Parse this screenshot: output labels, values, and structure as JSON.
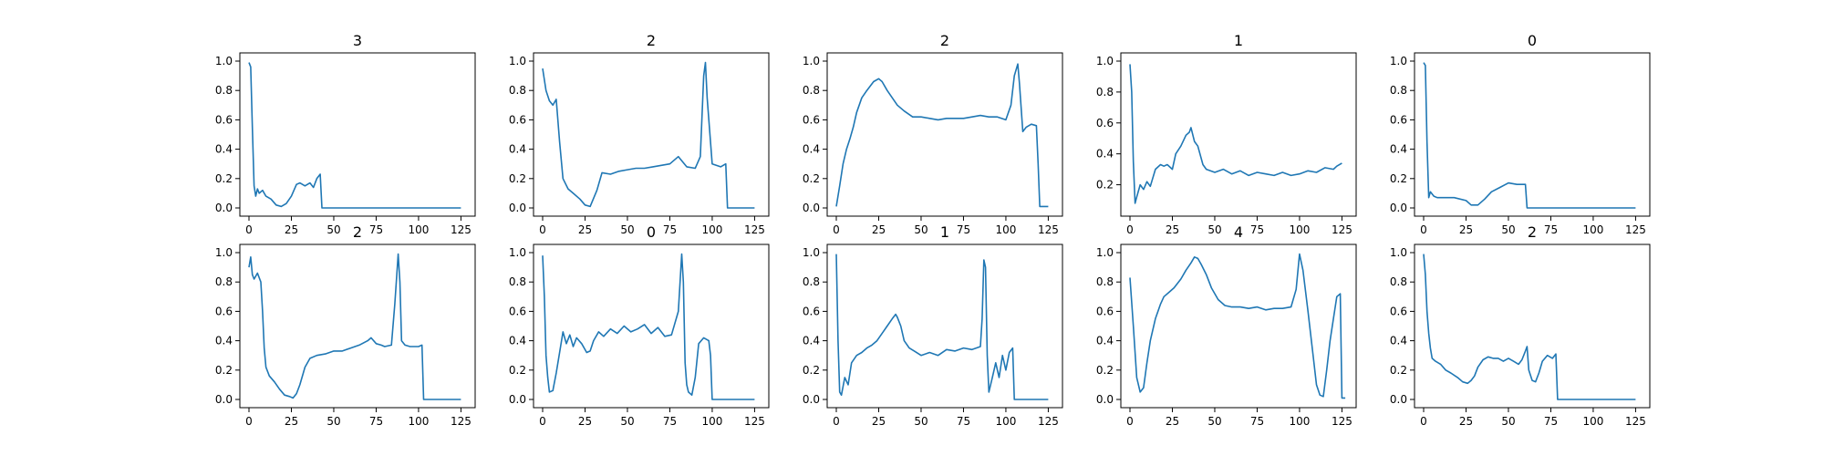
{
  "colors": {
    "series": "#1f77b4",
    "axes": "#000000",
    "background": "#ffffff"
  },
  "chart_data": [
    {
      "type": "line",
      "title": "3",
      "xlim": [
        0,
        128
      ],
      "ylim": [
        0,
        1.0
      ],
      "xticks": [
        0,
        25,
        50,
        75,
        100,
        125
      ],
      "yticks": [
        0.0,
        0.2,
        0.4,
        0.6,
        0.8,
        1.0
      ],
      "x": [
        0,
        1,
        2,
        3,
        4,
        5,
        6,
        8,
        10,
        13,
        16,
        19,
        22,
        25,
        28,
        30,
        33,
        36,
        38,
        40,
        42,
        43,
        50,
        75,
        100,
        125
      ],
      "values": [
        0.99,
        0.96,
        0.55,
        0.15,
        0.08,
        0.13,
        0.1,
        0.12,
        0.08,
        0.06,
        0.02,
        0.01,
        0.03,
        0.08,
        0.16,
        0.17,
        0.15,
        0.17,
        0.14,
        0.2,
        0.23,
        0.0,
        0.0,
        0.0,
        0.0,
        0.0
      ]
    },
    {
      "type": "line",
      "title": "2",
      "xlim": [
        0,
        128
      ],
      "ylim": [
        0,
        1.0
      ],
      "xticks": [
        0,
        25,
        50,
        75,
        100,
        125
      ],
      "yticks": [
        0.0,
        0.2,
        0.4,
        0.6,
        0.8,
        1.0
      ],
      "x": [
        0,
        2,
        4,
        6,
        8,
        10,
        12,
        15,
        18,
        22,
        25,
        28,
        32,
        35,
        40,
        45,
        50,
        55,
        60,
        65,
        70,
        75,
        80,
        85,
        90,
        93,
        95,
        96,
        97,
        100,
        105,
        108,
        109,
        125
      ],
      "values": [
        0.95,
        0.8,
        0.73,
        0.7,
        0.74,
        0.45,
        0.2,
        0.13,
        0.1,
        0.06,
        0.02,
        0.01,
        0.12,
        0.24,
        0.23,
        0.25,
        0.26,
        0.27,
        0.27,
        0.28,
        0.29,
        0.3,
        0.35,
        0.28,
        0.27,
        0.35,
        0.9,
        0.99,
        0.75,
        0.3,
        0.28,
        0.3,
        0.0,
        0.0
      ]
    },
    {
      "type": "line",
      "title": "2",
      "xlim": [
        0,
        128
      ],
      "ylim": [
        0,
        1.0
      ],
      "xticks": [
        0,
        25,
        50,
        75,
        100,
        125
      ],
      "yticks": [
        0.0,
        0.2,
        0.4,
        0.6,
        0.8,
        1.0
      ],
      "x": [
        0,
        2,
        4,
        6,
        8,
        10,
        12,
        15,
        18,
        20,
        22,
        25,
        27,
        30,
        33,
        36,
        40,
        45,
        50,
        55,
        60,
        65,
        70,
        75,
        80,
        85,
        90,
        95,
        100,
        103,
        105,
        107,
        108,
        110,
        112,
        115,
        118,
        119,
        120,
        125
      ],
      "values": [
        0.01,
        0.15,
        0.3,
        0.4,
        0.47,
        0.55,
        0.65,
        0.75,
        0.8,
        0.83,
        0.86,
        0.88,
        0.86,
        0.8,
        0.75,
        0.7,
        0.66,
        0.62,
        0.62,
        0.61,
        0.6,
        0.61,
        0.61,
        0.61,
        0.62,
        0.63,
        0.62,
        0.62,
        0.6,
        0.7,
        0.9,
        0.98,
        0.85,
        0.52,
        0.55,
        0.57,
        0.56,
        0.3,
        0.01,
        0.01
      ]
    },
    {
      "type": "line",
      "title": "1",
      "xlim": [
        0,
        128
      ],
      "ylim": [
        0.05,
        1.0
      ],
      "xticks": [
        0,
        25,
        50,
        75,
        100,
        125
      ],
      "yticks": [
        0.2,
        0.4,
        0.6,
        0.8,
        1.0
      ],
      "x": [
        0,
        1,
        2,
        3,
        4,
        6,
        8,
        10,
        12,
        15,
        18,
        20,
        22,
        25,
        27,
        30,
        33,
        35,
        36,
        38,
        40,
        43,
        45,
        50,
        55,
        60,
        65,
        70,
        75,
        80,
        85,
        90,
        95,
        100,
        105,
        110,
        115,
        120,
        122,
        125
      ],
      "values": [
        0.98,
        0.8,
        0.35,
        0.08,
        0.12,
        0.2,
        0.17,
        0.22,
        0.19,
        0.3,
        0.33,
        0.32,
        0.33,
        0.3,
        0.4,
        0.45,
        0.52,
        0.54,
        0.57,
        0.48,
        0.45,
        0.33,
        0.3,
        0.28,
        0.3,
        0.27,
        0.29,
        0.26,
        0.28,
        0.27,
        0.26,
        0.28,
        0.26,
        0.27,
        0.29,
        0.28,
        0.31,
        0.3,
        0.32,
        0.34
      ]
    },
    {
      "type": "line",
      "title": "0",
      "xlim": [
        0,
        128
      ],
      "ylim": [
        0,
        1.0
      ],
      "xticks": [
        0,
        25,
        50,
        75,
        100,
        125
      ],
      "yticks": [
        0.0,
        0.2,
        0.4,
        0.6,
        0.8,
        1.0
      ],
      "x": [
        0,
        1,
        2,
        3,
        4,
        6,
        8,
        12,
        18,
        25,
        28,
        32,
        36,
        40,
        45,
        50,
        55,
        60,
        61,
        75,
        100,
        125
      ],
      "values": [
        0.99,
        0.97,
        0.45,
        0.07,
        0.11,
        0.08,
        0.07,
        0.07,
        0.07,
        0.05,
        0.02,
        0.02,
        0.06,
        0.11,
        0.14,
        0.17,
        0.16,
        0.16,
        0.0,
        0.0,
        0.0,
        0.0
      ]
    },
    {
      "type": "line",
      "title": "2",
      "xlim": [
        0,
        128
      ],
      "ylim": [
        0,
        1.0
      ],
      "xticks": [
        0,
        25,
        50,
        75,
        100,
        125
      ],
      "yticks": [
        0.0,
        0.2,
        0.4,
        0.6,
        0.8,
        1.0
      ],
      "x": [
        0,
        1,
        2,
        3,
        5,
        7,
        8,
        9,
        10,
        12,
        15,
        18,
        21,
        24,
        26,
        28,
        30,
        33,
        36,
        40,
        45,
        50,
        55,
        60,
        65,
        70,
        72,
        75,
        78,
        80,
        84,
        86,
        88,
        89,
        90,
        92,
        95,
        100,
        102,
        103,
        125
      ],
      "values": [
        0.9,
        0.97,
        0.85,
        0.82,
        0.86,
        0.8,
        0.6,
        0.35,
        0.22,
        0.16,
        0.12,
        0.07,
        0.03,
        0.02,
        0.01,
        0.04,
        0.1,
        0.22,
        0.28,
        0.3,
        0.31,
        0.33,
        0.33,
        0.35,
        0.37,
        0.4,
        0.42,
        0.38,
        0.37,
        0.36,
        0.37,
        0.65,
        0.99,
        0.8,
        0.4,
        0.37,
        0.36,
        0.36,
        0.37,
        0.0,
        0.0
      ]
    },
    {
      "type": "line",
      "title": "0",
      "xlim": [
        0,
        128
      ],
      "ylim": [
        0,
        1.0
      ],
      "xticks": [
        0,
        25,
        50,
        75,
        100,
        125
      ],
      "yticks": [
        0.0,
        0.2,
        0.4,
        0.6,
        0.8,
        1.0
      ],
      "x": [
        0,
        1,
        2,
        3,
        4,
        6,
        8,
        10,
        12,
        14,
        16,
        18,
        20,
        23,
        26,
        28,
        30,
        33,
        36,
        40,
        44,
        48,
        52,
        56,
        60,
        64,
        68,
        72,
        76,
        80,
        82,
        83,
        84,
        85,
        86,
        88,
        90,
        92,
        95,
        98,
        99,
        100,
        125
      ],
      "values": [
        0.98,
        0.7,
        0.3,
        0.15,
        0.05,
        0.06,
        0.18,
        0.32,
        0.46,
        0.38,
        0.44,
        0.36,
        0.42,
        0.38,
        0.32,
        0.33,
        0.4,
        0.46,
        0.43,
        0.48,
        0.45,
        0.5,
        0.46,
        0.48,
        0.51,
        0.45,
        0.49,
        0.43,
        0.44,
        0.6,
        0.99,
        0.8,
        0.25,
        0.1,
        0.05,
        0.03,
        0.15,
        0.38,
        0.42,
        0.4,
        0.3,
        0.0,
        0.0
      ]
    },
    {
      "type": "line",
      "title": "1",
      "xlim": [
        0,
        128
      ],
      "ylim": [
        0,
        1.0
      ],
      "xticks": [
        0,
        25,
        50,
        75,
        100,
        125
      ],
      "yticks": [
        0.0,
        0.2,
        0.4,
        0.6,
        0.8,
        1.0
      ],
      "x": [
        0,
        1,
        2,
        3,
        5,
        7,
        9,
        12,
        15,
        18,
        21,
        24,
        27,
        30,
        33,
        35,
        36,
        38,
        40,
        43,
        46,
        50,
        55,
        60,
        65,
        70,
        75,
        80,
        85,
        86,
        87,
        88,
        89,
        90,
        92,
        94,
        96,
        98,
        100,
        102,
        104,
        105,
        125
      ],
      "values": [
        0.99,
        0.4,
        0.05,
        0.03,
        0.15,
        0.1,
        0.25,
        0.3,
        0.32,
        0.35,
        0.37,
        0.4,
        0.45,
        0.5,
        0.55,
        0.58,
        0.56,
        0.5,
        0.4,
        0.35,
        0.33,
        0.3,
        0.32,
        0.3,
        0.34,
        0.33,
        0.35,
        0.34,
        0.36,
        0.55,
        0.95,
        0.9,
        0.3,
        0.05,
        0.15,
        0.25,
        0.15,
        0.3,
        0.2,
        0.32,
        0.35,
        0.0,
        0.0
      ]
    },
    {
      "type": "line",
      "title": "4",
      "xlim": [
        0,
        128
      ],
      "ylim": [
        0,
        1.0
      ],
      "xticks": [
        0,
        25,
        50,
        75,
        100,
        125
      ],
      "yticks": [
        0.0,
        0.2,
        0.4,
        0.6,
        0.8,
        1.0
      ],
      "x": [
        0,
        2,
        4,
        6,
        8,
        10,
        12,
        15,
        18,
        20,
        23,
        26,
        30,
        33,
        36,
        38,
        40,
        42,
        45,
        48,
        52,
        56,
        60,
        65,
        70,
        75,
        80,
        85,
        90,
        95,
        98,
        100,
        102,
        105,
        108,
        110,
        112,
        114,
        116,
        118,
        120,
        122,
        124,
        125,
        127
      ],
      "values": [
        0.83,
        0.5,
        0.15,
        0.05,
        0.08,
        0.25,
        0.4,
        0.55,
        0.65,
        0.7,
        0.73,
        0.76,
        0.82,
        0.88,
        0.93,
        0.97,
        0.96,
        0.92,
        0.85,
        0.76,
        0.68,
        0.64,
        0.63,
        0.63,
        0.62,
        0.63,
        0.61,
        0.62,
        0.62,
        0.63,
        0.75,
        0.99,
        0.88,
        0.6,
        0.3,
        0.1,
        0.03,
        0.02,
        0.2,
        0.4,
        0.55,
        0.7,
        0.72,
        0.01,
        0.01
      ]
    },
    {
      "type": "line",
      "title": "2",
      "xlim": [
        0,
        128
      ],
      "ylim": [
        0,
        1.0
      ],
      "xticks": [
        0,
        25,
        50,
        75,
        100,
        125
      ],
      "yticks": [
        0.0,
        0.2,
        0.4,
        0.6,
        0.8,
        1.0
      ],
      "x": [
        0,
        1,
        2,
        3,
        4,
        5,
        7,
        10,
        13,
        16,
        20,
        23,
        26,
        28,
        30,
        32,
        35,
        38,
        41,
        44,
        47,
        50,
        53,
        56,
        58,
        60,
        61,
        62,
        64,
        66,
        68,
        70,
        73,
        76,
        78,
        79,
        100,
        125
      ],
      "values": [
        0.99,
        0.85,
        0.6,
        0.45,
        0.35,
        0.28,
        0.26,
        0.24,
        0.2,
        0.18,
        0.15,
        0.12,
        0.11,
        0.13,
        0.16,
        0.22,
        0.27,
        0.29,
        0.28,
        0.28,
        0.26,
        0.28,
        0.26,
        0.24,
        0.27,
        0.33,
        0.36,
        0.2,
        0.13,
        0.12,
        0.18,
        0.26,
        0.3,
        0.28,
        0.31,
        0.0,
        0.0,
        0.0
      ]
    }
  ]
}
